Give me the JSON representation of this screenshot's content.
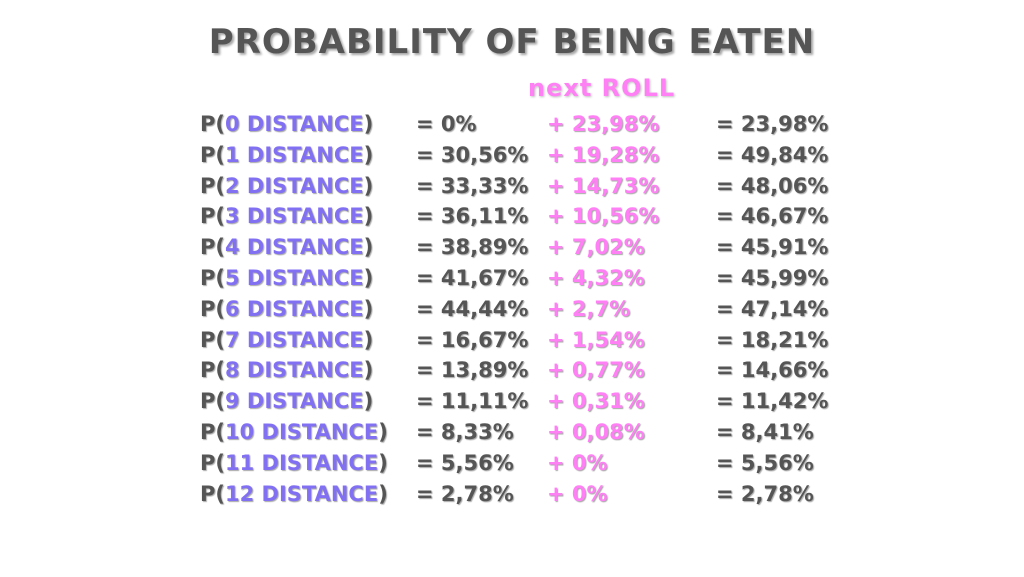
{
  "title": "PROBABILITY OF BEING EATEN",
  "subtitle": "next ROLL",
  "colors": {
    "gray": "#555555",
    "purple": "#8270f2",
    "pink": "#ff7ff4"
  },
  "rows": [
    {
      "prefix": "P(",
      "distance": "0 DISTANCE",
      "suffix": ")",
      "base": "= 0%",
      "next": "+ 23,98%",
      "total": "= 23,98%"
    },
    {
      "prefix": "P(",
      "distance": "1 DISTANCE",
      "suffix": ")",
      "base": "= 30,56%",
      "next": "+ 19,28%",
      "total": "= 49,84%"
    },
    {
      "prefix": "P(",
      "distance": "2 DISTANCE",
      "suffix": ")",
      "base": "= 33,33%",
      "next": "+ 14,73%",
      "total": "= 48,06%"
    },
    {
      "prefix": "P(",
      "distance": "3 DISTANCE",
      "suffix": ")",
      "base": "= 36,11%",
      "next": "+ 10,56%",
      "total": "= 46,67%"
    },
    {
      "prefix": "P(",
      "distance": "4 DISTANCE",
      "suffix": ")",
      "base": "= 38,89%",
      "next": "+ 7,02%",
      "total": "= 45,91%"
    },
    {
      "prefix": "P(",
      "distance": "5 DISTANCE",
      "suffix": ")",
      "base": "= 41,67%",
      "next": "+ 4,32%",
      "total": "= 45,99%"
    },
    {
      "prefix": "P(",
      "distance": "6 DISTANCE",
      "suffix": ")",
      "base": "= 44,44%",
      "next": "+ 2,7%",
      "total": "= 47,14%"
    },
    {
      "prefix": "P(",
      "distance": "7 DISTANCE",
      "suffix": ")",
      "base": "= 16,67%",
      "next": "+ 1,54%",
      "total": "= 18,21%"
    },
    {
      "prefix": "P(",
      "distance": "8 DISTANCE",
      "suffix": ")",
      "base": "= 13,89%",
      "next": "+ 0,77%",
      "total": "= 14,66%"
    },
    {
      "prefix": "P(",
      "distance": "9 DISTANCE",
      "suffix": ")",
      "base": "= 11,11%",
      "next": "+ 0,31%",
      "total": "= 11,42%"
    },
    {
      "prefix": "P(",
      "distance": "10 DISTANCE",
      "suffix": ")",
      "base": "= 8,33%",
      "next": "+ 0,08%",
      "total": "= 8,41%"
    },
    {
      "prefix": "P(",
      "distance": "11 DISTANCE",
      "suffix": ")",
      "base": "= 5,56%",
      "next": "+ 0%",
      "total": "= 5,56%"
    },
    {
      "prefix": "P(",
      "distance": "12 DISTANCE",
      "suffix": ")",
      "base": "= 2,78%",
      "next": "+ 0%",
      "total": "= 2,78%"
    }
  ]
}
